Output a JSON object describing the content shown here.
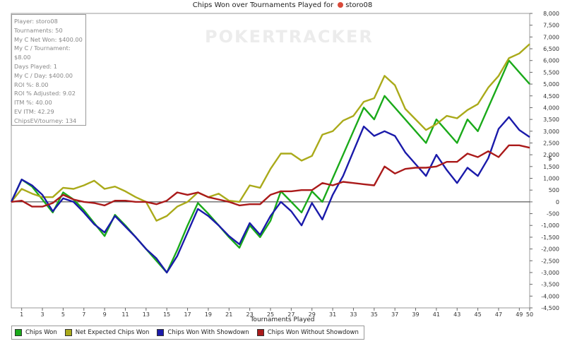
{
  "title": {
    "text": "Chips Won over Tournaments Played for",
    "player": "storo08"
  },
  "watermark": "POKERTRACKER",
  "stats": [
    "Player: storo08",
    "Tournaments: 50",
    "My C Net Won: $400.00",
    "My C / Tournament: $8.00",
    "Days Played: 1",
    "My C / Day: $400.00",
    "ROI %: 8.00",
    "ROI % Adjusted: 9.02",
    "ITM %: 40.00",
    "EV ITM: 42.29",
    "ChipsEV/tourney: 134"
  ],
  "chart_data": {
    "type": "line",
    "xlabel": "Tournaments Played",
    "ylabel": "$",
    "xlim": [
      0,
      50
    ],
    "ylim": [
      -4500,
      8000
    ],
    "x_ticks": [
      1,
      3,
      5,
      7,
      9,
      11,
      13,
      15,
      17,
      19,
      21,
      23,
      25,
      27,
      29,
      31,
      33,
      35,
      37,
      39,
      41,
      43,
      45,
      47,
      49,
      50
    ],
    "y_ticks": [
      -4500,
      -4000,
      -3500,
      -3000,
      -2500,
      -2000,
      -1500,
      -1000,
      -500,
      0,
      500,
      1000,
      1500,
      2000,
      2500,
      3000,
      3500,
      4000,
      4500,
      5000,
      5500,
      6000,
      6500,
      7000,
      7500,
      8000
    ],
    "y_tick_labels": [
      "-4,500",
      "-4,000",
      "-3,500",
      "-3,000",
      "-2,500",
      "-2,000",
      "-1,500",
      "-1,000",
      "-500",
      "0",
      "500",
      "1,000",
      "1,500",
      "2,000",
      "2,500",
      "3,000",
      "3,500",
      "4,000",
      "4,500",
      "5,000",
      "5,500",
      "6,000",
      "6,500",
      "7,000",
      "7,500",
      "8,000"
    ],
    "grid": true,
    "legend_position": "bottom",
    "x": [
      0,
      1,
      2,
      3,
      4,
      5,
      6,
      7,
      8,
      9,
      10,
      11,
      12,
      13,
      14,
      15,
      16,
      17,
      18,
      19,
      20,
      21,
      22,
      23,
      24,
      25,
      26,
      27,
      28,
      29,
      30,
      31,
      32,
      33,
      34,
      35,
      36,
      37,
      38,
      39,
      40,
      41,
      42,
      43,
      44,
      45,
      46,
      47,
      48,
      49,
      50
    ],
    "series": [
      {
        "name": "Chips Won",
        "color": "#1aaa1a",
        "values": [
          0,
          950,
          650,
          100,
          -450,
          400,
          100,
          -350,
          -900,
          -1450,
          -550,
          -1000,
          -1500,
          -2000,
          -2500,
          -3000,
          -2050,
          -1000,
          -50,
          -500,
          -1000,
          -1500,
          -1950,
          -1000,
          -1500,
          -800,
          450,
          0,
          -450,
          450,
          0,
          1000,
          2000,
          3000,
          4000,
          3500,
          4500,
          4000,
          3500,
          3000,
          2500,
          3500,
          3000,
          2500,
          3500,
          3000,
          4000,
          5000,
          6000,
          5500,
          5000
        ]
      },
      {
        "name": "Net Expected Chips Won",
        "color": "#aaaa1a",
        "values": [
          0,
          550,
          350,
          200,
          200,
          600,
          550,
          700,
          900,
          550,
          650,
          450,
          200,
          0,
          -800,
          -600,
          -200,
          0,
          400,
          200,
          350,
          50,
          0,
          700,
          600,
          1400,
          2050,
          2050,
          1750,
          1950,
          2850,
          3000,
          3450,
          3650,
          4250,
          4400,
          5350,
          4950,
          3950,
          3500,
          3050,
          3300,
          3650,
          3550,
          3900,
          4150,
          4850,
          5350,
          6100,
          6300,
          6700
        ]
      },
      {
        "name": "Chips Won With Showdown",
        "color": "#1a1aaa",
        "values": [
          0,
          950,
          700,
          300,
          -400,
          150,
          0,
          -450,
          -950,
          -1300,
          -600,
          -1050,
          -1500,
          -2000,
          -2400,
          -3000,
          -2300,
          -1300,
          -300,
          -600,
          -1000,
          -1450,
          -1800,
          -900,
          -1400,
          -600,
          0,
          -400,
          -1000,
          -50,
          -750,
          300,
          1100,
          2150,
          3200,
          2800,
          3000,
          2800,
          2100,
          1600,
          1100,
          2000,
          1350,
          800,
          1450,
          1100,
          1850,
          3100,
          3600,
          3050,
          2750
        ]
      },
      {
        "name": "Chips Won Without Showdown",
        "color": "#aa1a1a",
        "values": [
          0,
          50,
          -200,
          -200,
          -50,
          300,
          100,
          0,
          -50,
          -150,
          50,
          50,
          0,
          0,
          -100,
          50,
          400,
          300,
          400,
          200,
          100,
          0,
          -150,
          -100,
          -100,
          300,
          450,
          450,
          500,
          500,
          800,
          700,
          850,
          800,
          750,
          700,
          1500,
          1200,
          1400,
          1450,
          1450,
          1500,
          1700,
          1700,
          2050,
          1900,
          2150,
          1900,
          2400,
          2400,
          2300
        ]
      }
    ]
  }
}
